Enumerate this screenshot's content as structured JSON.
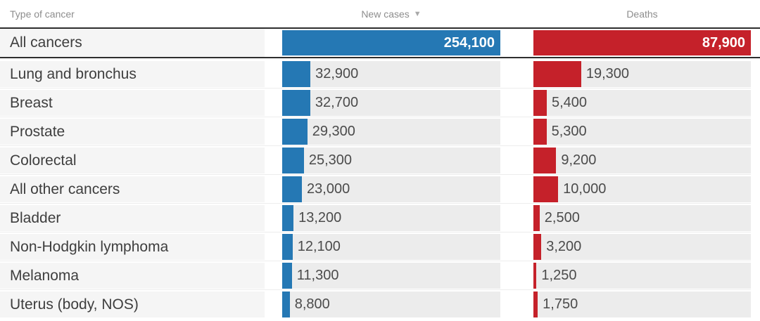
{
  "header": {
    "type_label": "Type of cancer",
    "new_cases_label": "New cases",
    "deaths_label": "Deaths",
    "sort_icon": "▼"
  },
  "colors": {
    "new_cases_bar": "#2578b4",
    "deaths_bar": "#c5212a",
    "track": "#ececec",
    "label_bg": "#f5f5f5",
    "border_dark": "#2e2e2e"
  },
  "table": {
    "rows": [
      {
        "label": "All cancers",
        "new_cases": "254,100",
        "new_cases_value": 254100,
        "deaths": "87,900",
        "deaths_value": 87900,
        "is_total": true
      },
      {
        "label": "Lung and bronchus",
        "new_cases": "32,900",
        "new_cases_value": 32900,
        "deaths": "19,300",
        "deaths_value": 19300
      },
      {
        "label": "Breast",
        "new_cases": "32,700",
        "new_cases_value": 32700,
        "deaths": "5,400",
        "deaths_value": 5400
      },
      {
        "label": "Prostate",
        "new_cases": "29,300",
        "new_cases_value": 29300,
        "deaths": "5,300",
        "deaths_value": 5300
      },
      {
        "label": "Colorectal",
        "new_cases": "25,300",
        "new_cases_value": 25300,
        "deaths": "9,200",
        "deaths_value": 9200
      },
      {
        "label": "All other cancers",
        "new_cases": "23,000",
        "new_cases_value": 23000,
        "deaths": "10,000",
        "deaths_value": 10000
      },
      {
        "label": "Bladder",
        "new_cases": "13,200",
        "new_cases_value": 13200,
        "deaths": "2,500",
        "deaths_value": 2500
      },
      {
        "label": "Non-Hodgkin lymphoma",
        "new_cases": "12,100",
        "new_cases_value": 12100,
        "deaths": "3,200",
        "deaths_value": 3200
      },
      {
        "label": "Melanoma",
        "new_cases": "11,300",
        "new_cases_value": 11300,
        "deaths": "1,250",
        "deaths_value": 1250
      },
      {
        "label": "Uterus (body, NOS)",
        "new_cases": "8,800",
        "new_cases_value": 8800,
        "deaths": "1,750",
        "deaths_value": 1750
      }
    ]
  },
  "chart_data": {
    "type": "bar",
    "orientation": "horizontal",
    "categories": [
      "All cancers",
      "Lung and bronchus",
      "Breast",
      "Prostate",
      "Colorectal",
      "All other cancers",
      "Bladder",
      "Non-Hodgkin lymphoma",
      "Melanoma",
      "Uterus (body, NOS)"
    ],
    "series": [
      {
        "name": "New cases",
        "color": "#2578b4",
        "values": [
          254100,
          32900,
          32700,
          29300,
          25300,
          23000,
          13200,
          12100,
          11300,
          8800
        ]
      },
      {
        "name": "Deaths",
        "color": "#c5212a",
        "values": [
          87900,
          19300,
          5400,
          5300,
          9200,
          10000,
          2500,
          3200,
          1250,
          1750
        ]
      }
    ],
    "sort": {
      "column": "New cases",
      "direction": "descending"
    },
    "value_labels": true,
    "bar_scale": "each column scaled to its own maximum",
    "title": ""
  }
}
